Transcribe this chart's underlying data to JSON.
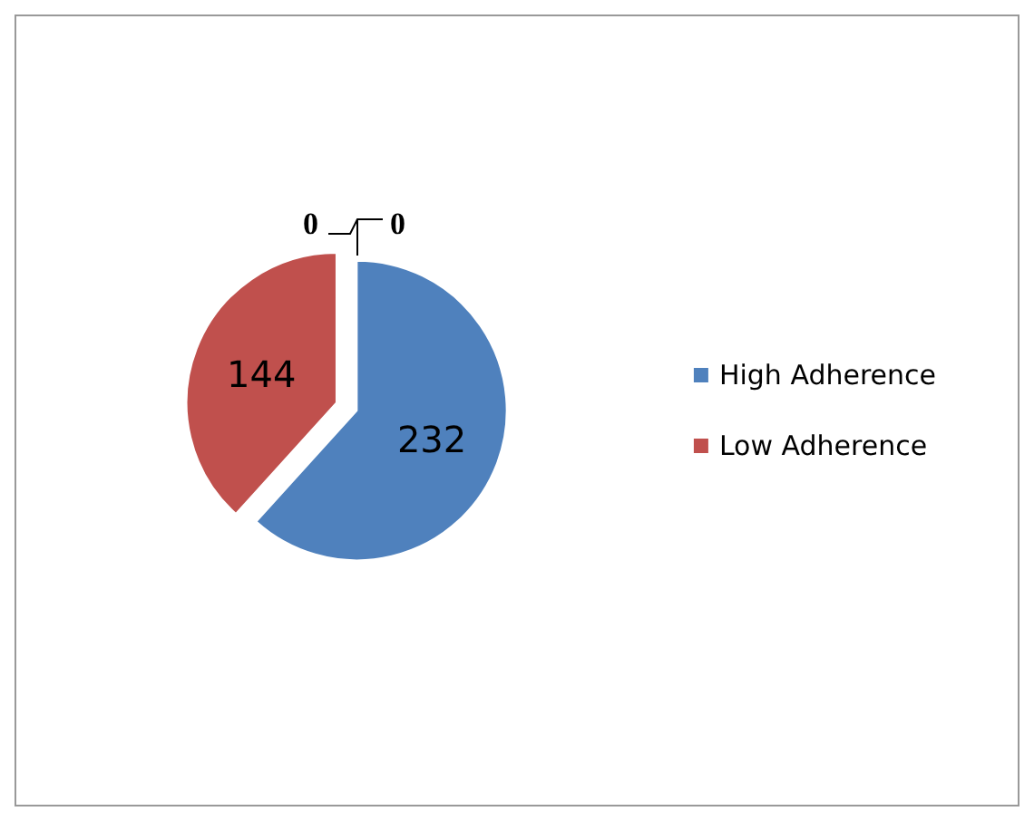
{
  "chart_data": {
    "type": "pie",
    "categories": [
      "High Adherence",
      "Low Adherence"
    ],
    "values": [
      232,
      144
    ],
    "colors": [
      "#4f81bd",
      "#c0504d"
    ],
    "data_labels": true,
    "legend": "right",
    "annotations": [
      "0",
      "0"
    ]
  }
}
